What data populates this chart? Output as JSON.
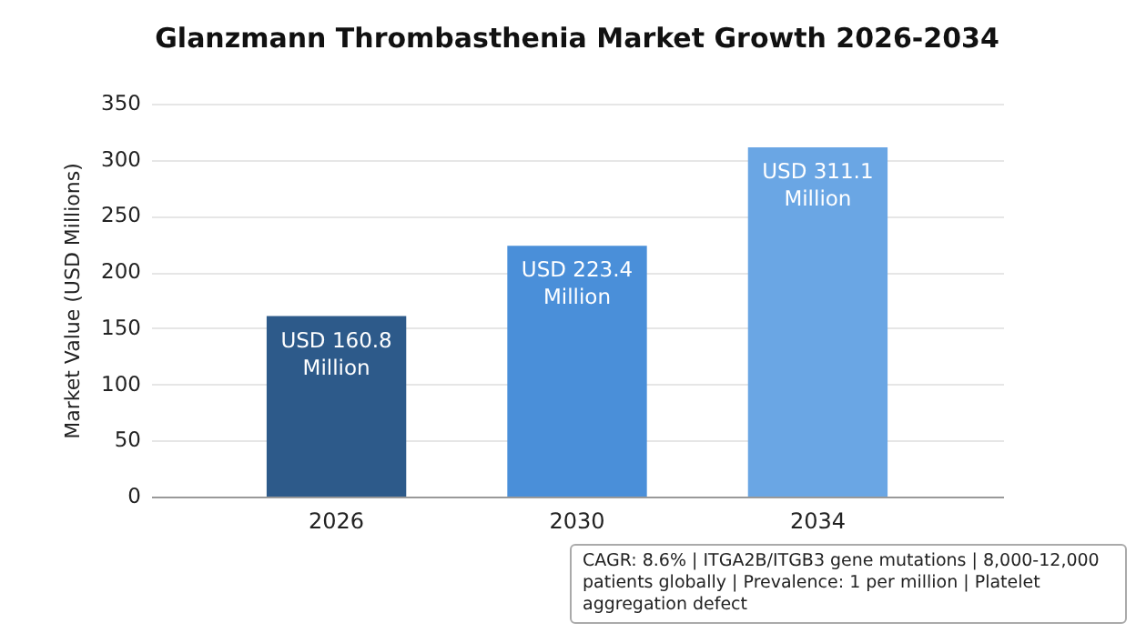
{
  "chart_data": {
    "type": "bar",
    "title": "Glanzmann Thrombasthenia Market Growth 2026-2034",
    "ylabel": "Market Value (USD Millions)",
    "categories": [
      "2026",
      "2030",
      "2034"
    ],
    "values": [
      160.8,
      223.4,
      311.1
    ],
    "colors": [
      "#2d5a8a",
      "#4a8fd9",
      "#6aa6e4"
    ],
    "value_labels": [
      "USD 160.8 Million",
      "USD 223.4 Million",
      "USD 311.1 Million"
    ],
    "ylim": [
      0,
      350
    ],
    "yticks": [
      0,
      50,
      100,
      150,
      200,
      250,
      300,
      350
    ],
    "grid": "y",
    "annotations": [
      "CAGR: 8.6% | ITGA2B/ITGB3 gene mutations | 8,000-12,000 patients globally | Prevalence: 1 per million | Platelet aggregation defect"
    ]
  }
}
